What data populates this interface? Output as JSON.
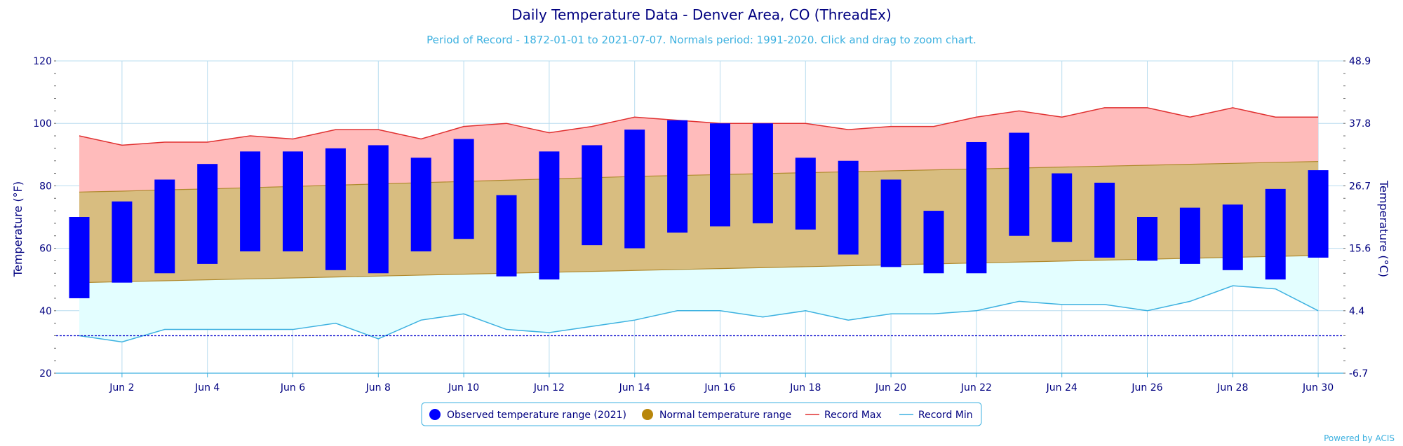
{
  "title": "Daily Temperature Data - Denver Area, CO (ThreadEx)",
  "subtitle": "Period of Record - 1872-01-01 to 2021-07-07. Normals period: 1991-2020. Click and drag to zoom chart.",
  "credit": "Powered by ACIS",
  "colors": {
    "observed": "#0000ff",
    "normal_fill": "#d8bd80",
    "normal_line": "#b08a2e",
    "record_max": "#e03030",
    "record_max_fill": "#ffbbbb",
    "record_min": "#3db1e0",
    "record_min_fill": "#e3feff",
    "freezing_line": "#0000cc",
    "grid": "#b8dcef",
    "text": "#000080"
  },
  "chart_data": {
    "type": "bar",
    "x": [
      "Jun 1",
      "Jun 2",
      "Jun 3",
      "Jun 4",
      "Jun 5",
      "Jun 6",
      "Jun 7",
      "Jun 8",
      "Jun 9",
      "Jun 10",
      "Jun 11",
      "Jun 12",
      "Jun 13",
      "Jun 14",
      "Jun 15",
      "Jun 16",
      "Jun 17",
      "Jun 18",
      "Jun 19",
      "Jun 20",
      "Jun 21",
      "Jun 22",
      "Jun 23",
      "Jun 24",
      "Jun 25",
      "Jun 26",
      "Jun 27",
      "Jun 28",
      "Jun 29",
      "Jun 30"
    ],
    "x_tick_labels": [
      "Jun 2",
      "Jun 4",
      "Jun 6",
      "Jun 8",
      "Jun 10",
      "Jun 12",
      "Jun 14",
      "Jun 16",
      "Jun 18",
      "Jun 20",
      "Jun 22",
      "Jun 24",
      "Jun 26",
      "Jun 28",
      "Jun 30"
    ],
    "ylabel": "Temperature (°F)",
    "y2label": "Temperature (°C)",
    "ylim": [
      20,
      120
    ],
    "y_ticks": [
      20,
      40,
      60,
      80,
      100,
      120
    ],
    "y2_tick_labels": [
      "-6.7",
      "4.4",
      "15.6",
      "26.7",
      "37.8",
      "48.9"
    ],
    "grid": true,
    "legend_position": "bottom-center",
    "freezing_line": 32,
    "series": [
      {
        "name": "Observed temperature range (2021)",
        "low": [
          44,
          49,
          52,
          55,
          59,
          59,
          53,
          52,
          59,
          63,
          51,
          50,
          61,
          60,
          65,
          67,
          68,
          66,
          58,
          54,
          52,
          52,
          64,
          62,
          57,
          56,
          55,
          53,
          50,
          57
        ],
        "high": [
          70,
          75,
          82,
          87,
          91,
          91,
          92,
          93,
          89,
          95,
          77,
          91,
          93,
          98,
          101,
          100,
          100,
          89,
          88,
          82,
          72,
          94,
          97,
          84,
          81,
          70,
          73,
          74,
          79,
          85
        ]
      },
      {
        "name": "Normal temperature range",
        "low": [
          49,
          49.3,
          49.6,
          49.9,
          50.2,
          50.5,
          50.8,
          51.1,
          51.4,
          51.7,
          52,
          52.3,
          52.6,
          52.9,
          53.2,
          53.5,
          53.8,
          54.1,
          54.4,
          54.7,
          55,
          55.3,
          55.6,
          55.9,
          56.2,
          56.5,
          56.8,
          57.1,
          57.4,
          57.7
        ],
        "high": [
          78,
          78.3,
          78.7,
          79,
          79.4,
          79.8,
          80.2,
          80.6,
          81,
          81.4,
          81.8,
          82.2,
          82.6,
          83,
          83.3,
          83.6,
          83.9,
          84.2,
          84.5,
          84.8,
          85.1,
          85.4,
          85.7,
          86,
          86.3,
          86.6,
          86.9,
          87.2,
          87.5,
          87.8
        ]
      },
      {
        "name": "Record Max",
        "values": [
          96,
          93,
          94,
          94,
          96,
          95,
          98,
          98,
          95,
          99,
          100,
          97,
          99,
          102,
          101,
          100,
          100,
          100,
          98,
          99,
          99,
          102,
          104,
          102,
          105,
          105,
          102,
          105,
          102,
          102
        ]
      },
      {
        "name": "Record Min",
        "values": [
          32,
          30,
          34,
          34,
          34,
          34,
          36,
          31,
          37,
          39,
          34,
          33,
          35,
          37,
          40,
          40,
          38,
          40,
          37,
          39,
          39,
          40,
          43,
          42,
          42,
          40,
          43,
          48,
          47,
          40
        ]
      }
    ]
  },
  "legend": {
    "items": [
      {
        "label": "Observed temperature range (2021)",
        "icon": "circle",
        "color": "#0000ff"
      },
      {
        "label": "Normal temperature range",
        "icon": "circle",
        "color": "#b8860b"
      },
      {
        "label": "Record Max",
        "icon": "line",
        "color": "#e03030"
      },
      {
        "label": "Record Min",
        "icon": "line",
        "color": "#3db1e0"
      }
    ]
  }
}
